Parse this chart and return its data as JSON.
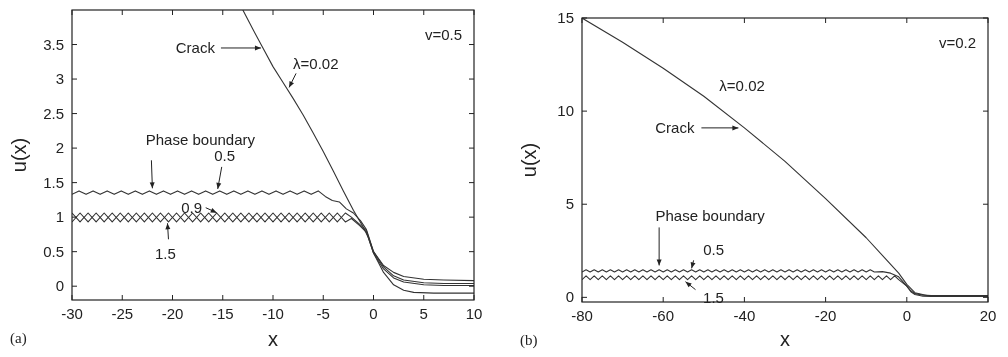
{
  "chart_data": [
    {
      "type": "line",
      "xlabel": "x",
      "ylabel": "u(x)",
      "xlim": [
        -30,
        10
      ],
      "ylim": [
        -0.2,
        4
      ],
      "xticks": [
        -30,
        -25,
        -20,
        -15,
        -10,
        -5,
        0,
        5,
        10
      ],
      "yticks": [
        0,
        0.5,
        1,
        1.5,
        2,
        2.5,
        3,
        3.5
      ],
      "series": [
        {
          "color": "#333333",
          "x": [
            -13,
            -12,
            -11,
            -10,
            -9,
            -8,
            -7,
            -6,
            -5,
            -4,
            -3,
            -2,
            -1,
            -0.5,
            0,
            1,
            2,
            3,
            4,
            6,
            10
          ],
          "values": [
            4.0,
            3.72,
            3.45,
            3.18,
            2.95,
            2.72,
            2.48,
            2.22,
            1.95,
            1.67,
            1.38,
            1.1,
            0.85,
            0.7,
            0.48,
            0.2,
            0.02,
            -0.06,
            -0.09,
            -0.1,
            -0.1
          ]
        },
        {
          "color": "#333333",
          "x": [
            -30,
            -29.3,
            -28.6,
            -27.9,
            -27.2,
            -26.5,
            -25.8,
            -25.1,
            -24.4,
            -23.7,
            -23,
            -22.3,
            -21.6,
            -20.9,
            -20.2,
            -19.5,
            -18.8,
            -18.1,
            -17.4,
            -16.7,
            -16,
            -15.3,
            -14.6,
            -13.9,
            -13.2,
            -12.5,
            -11.8,
            -11.1,
            -10.4,
            -9.7,
            -9,
            -8.3,
            -7.6,
            -6.9,
            -6.2,
            -5.5,
            -4.8,
            -4.1,
            -3.4,
            -2.7,
            -2,
            -1.3,
            -0.7,
            0,
            1,
            2,
            3,
            5,
            7,
            10
          ],
          "values": [
            1.33,
            1.38,
            1.33,
            1.38,
            1.33,
            1.38,
            1.33,
            1.38,
            1.33,
            1.38,
            1.33,
            1.38,
            1.33,
            1.38,
            1.33,
            1.38,
            1.33,
            1.38,
            1.33,
            1.38,
            1.33,
            1.38,
            1.33,
            1.38,
            1.33,
            1.38,
            1.33,
            1.38,
            1.33,
            1.38,
            1.33,
            1.38,
            1.33,
            1.38,
            1.33,
            1.38,
            1.3,
            1.24,
            1.22,
            1.12,
            1.06,
            0.95,
            0.82,
            0.5,
            0.3,
            0.2,
            0.14,
            0.1,
            0.09,
            0.08
          ]
        },
        {
          "color": "#333333",
          "x": [
            -30,
            -29.2,
            -28.4,
            -27.6,
            -26.8,
            -26,
            -25.2,
            -24.4,
            -23.6,
            -22.8,
            -22,
            -21.2,
            -20.4,
            -19.6,
            -18.8,
            -18,
            -17.2,
            -16.4,
            -15.6,
            -14.8,
            -14,
            -13.2,
            -12.4,
            -11.6,
            -10.8,
            -10,
            -9.2,
            -8.4,
            -7.6,
            -6.8,
            -6,
            -5.2,
            -4.4,
            -3.6,
            -2.8,
            -2.2,
            -1.4,
            -0.7,
            0,
            1,
            2,
            3,
            5,
            7,
            10
          ],
          "values": [
            1.06,
            0.93,
            1.06,
            0.93,
            1.06,
            0.93,
            1.06,
            0.93,
            1.06,
            0.93,
            1.06,
            0.93,
            1.06,
            0.93,
            1.06,
            0.93,
            1.06,
            0.93,
            1.06,
            0.93,
            1.06,
            0.93,
            1.06,
            0.93,
            1.06,
            0.93,
            1.06,
            0.93,
            1.06,
            0.93,
            1.06,
            0.93,
            1.06,
            0.93,
            1.06,
            1.0,
            0.9,
            0.8,
            0.5,
            0.28,
            0.15,
            0.09,
            0.05,
            0.04,
            0.04
          ]
        },
        {
          "color": "#333333",
          "x": [
            -30,
            -29.2,
            -28.4,
            -27.6,
            -26.8,
            -26,
            -25.2,
            -24.4,
            -23.6,
            -22.8,
            -22,
            -21.2,
            -20.4,
            -19.6,
            -18.8,
            -18,
            -17.2,
            -16.4,
            -15.6,
            -14.8,
            -14,
            -13.2,
            -12.4,
            -11.6,
            -10.8,
            -10,
            -9.2,
            -8.4,
            -7.6,
            -6.8,
            -6,
            -5.2,
            -4.4,
            -3.6,
            -2.8,
            -2.2,
            -1.4,
            -0.7,
            0,
            1,
            2,
            3,
            5,
            7,
            10
          ],
          "values": [
            0.93,
            1.06,
            0.93,
            1.06,
            0.93,
            1.06,
            0.93,
            1.06,
            0.93,
            1.06,
            0.93,
            1.06,
            0.93,
            1.06,
            0.93,
            1.06,
            0.93,
            1.06,
            0.93,
            1.06,
            0.93,
            1.06,
            0.93,
            1.06,
            0.93,
            1.06,
            0.93,
            1.06,
            0.93,
            1.06,
            0.93,
            1.06,
            0.93,
            1.06,
            0.93,
            0.98,
            0.88,
            0.78,
            0.48,
            0.25,
            0.12,
            0.06,
            0.02,
            0.01,
            0.01
          ]
        }
      ],
      "annotations": [
        {
          "text": "Crack",
          "x": -11,
          "y": 3.45
        },
        {
          "text": "λ=0.02",
          "x": -8.5,
          "y": 2.85
        },
        {
          "text": "Phase boundary",
          "x": -22,
          "y": 1.36
        },
        {
          "text": "0.5",
          "x": -15.5,
          "y": 1.38
        },
        {
          "text": "0.9",
          "x": -15.5,
          "y": 1.05
        },
        {
          "text": "1.5",
          "x": -20.5,
          "y": 0.94
        },
        "v=0.5",
        "(a)"
      ]
    },
    {
      "type": "line",
      "xlabel": "x",
      "ylabel": "u(x)",
      "xlim": [
        -80,
        20
      ],
      "ylim": [
        -0.25,
        15
      ],
      "xticks": [
        -80,
        -60,
        -40,
        -20,
        0,
        20
      ],
      "yticks": [
        0,
        5,
        10,
        15
      ],
      "series": [
        {
          "color": "#333333",
          "x": [
            -80,
            -70,
            -60,
            -50,
            -40,
            -30,
            -20,
            -10,
            -2,
            0,
            2,
            5,
            20
          ],
          "values": [
            15,
            13.7,
            12.3,
            10.8,
            9.1,
            7.3,
            5.3,
            3.2,
            1.3,
            0.7,
            0.25,
            0.1,
            0.1
          ]
        },
        {
          "color": "#333333",
          "x": [
            -80,
            -79,
            -78,
            -77,
            -76,
            -75,
            -74,
            -73,
            -72,
            -71,
            -70,
            -69,
            -68,
            -67,
            -66,
            -65,
            -64,
            -63,
            -62,
            -61,
            -60,
            -59,
            -58,
            -57,
            -56,
            -55,
            -54,
            -53,
            -52,
            -51,
            -50,
            -49,
            -48,
            -47,
            -46,
            -45,
            -44,
            -43,
            -42,
            -41,
            -40,
            -39,
            -38,
            -37,
            -36,
            -35,
            -34,
            -33,
            -32,
            -31,
            -30,
            -29,
            -28,
            -27,
            -26,
            -25,
            -24,
            -23,
            -22,
            -21,
            -20,
            -19,
            -18,
            -17,
            -16,
            -15,
            -14,
            -13,
            -12,
            -11,
            -10,
            -9,
            -8,
            -6,
            -4,
            -2,
            0,
            1,
            2,
            4,
            6,
            10,
            20
          ],
          "values": [
            1.36,
            1.48,
            1.36,
            1.48,
            1.36,
            1.48,
            1.36,
            1.48,
            1.36,
            1.48,
            1.36,
            1.48,
            1.36,
            1.48,
            1.36,
            1.48,
            1.36,
            1.48,
            1.36,
            1.48,
            1.36,
            1.48,
            1.36,
            1.48,
            1.36,
            1.48,
            1.36,
            1.48,
            1.36,
            1.48,
            1.36,
            1.48,
            1.36,
            1.48,
            1.36,
            1.48,
            1.36,
            1.48,
            1.36,
            1.48,
            1.36,
            1.48,
            1.36,
            1.48,
            1.36,
            1.48,
            1.36,
            1.48,
            1.36,
            1.48,
            1.36,
            1.48,
            1.36,
            1.48,
            1.36,
            1.48,
            1.36,
            1.48,
            1.36,
            1.48,
            1.36,
            1.48,
            1.36,
            1.48,
            1.36,
            1.48,
            1.36,
            1.48,
            1.36,
            1.48,
            1.36,
            1.48,
            1.36,
            1.38,
            1.3,
            1.1,
            0.6,
            0.35,
            0.2,
            0.12,
            0.1,
            0.1,
            0.1
          ]
        },
        {
          "color": "#333333",
          "x": [
            -80,
            -79,
            -78,
            -77,
            -76,
            -75,
            -74,
            -73,
            -72,
            -71,
            -70,
            -69,
            -68,
            -67,
            -66,
            -65,
            -64,
            -63,
            -62,
            -61,
            -60,
            -59,
            -58,
            -57,
            -56,
            -55,
            -54,
            -53,
            -52,
            -51,
            -50,
            -49,
            -48,
            -47,
            -46,
            -45,
            -44,
            -43,
            -42,
            -41,
            -40,
            -39,
            -38,
            -37,
            -36,
            -35,
            -34,
            -33,
            -32,
            -31,
            -30,
            -29,
            -28,
            -27,
            -26,
            -25,
            -24,
            -23,
            -22,
            -21,
            -20,
            -19,
            -18,
            -17,
            -16,
            -15,
            -14,
            -13,
            -12,
            -11,
            -10,
            -9,
            -8,
            -7,
            -6,
            -5,
            -4,
            -3,
            -2,
            0,
            1,
            2,
            4,
            6,
            20
          ],
          "values": [
            0.95,
            1.15,
            0.95,
            1.15,
            0.95,
            1.15,
            0.95,
            1.15,
            0.95,
            1.15,
            0.95,
            1.15,
            0.95,
            1.15,
            0.95,
            1.15,
            0.95,
            1.15,
            0.95,
            1.15,
            0.95,
            1.15,
            0.95,
            1.15,
            0.95,
            1.15,
            0.95,
            1.15,
            0.95,
            1.15,
            0.95,
            1.15,
            0.95,
            1.15,
            0.95,
            1.15,
            0.95,
            1.15,
            0.95,
            1.15,
            0.95,
            1.15,
            0.95,
            1.15,
            0.95,
            1.15,
            0.95,
            1.15,
            0.95,
            1.15,
            0.95,
            1.15,
            0.95,
            1.15,
            0.95,
            1.15,
            0.95,
            1.15,
            0.95,
            1.15,
            0.95,
            1.15,
            0.95,
            1.15,
            0.95,
            1.15,
            0.95,
            1.15,
            0.95,
            1.15,
            0.95,
            1.15,
            0.95,
            1.15,
            0.95,
            1.15,
            0.95,
            1.15,
            0.95,
            0.6,
            0.3,
            0.15,
            0.06,
            0.05,
            0.05
          ]
        }
      ],
      "annotations": [
        {
          "text": "λ=0.02",
          "x": -45,
          "y": 10
        },
        {
          "text": "Crack",
          "x": -40,
          "y": 9.1
        },
        {
          "text": "Phase boundary",
          "x": -61,
          "y": 1.5
        },
        {
          "text": "0.5",
          "x": -53,
          "y": 1.45
        },
        {
          "text": "1.5",
          "x": -55,
          "y": 0.95
        },
        "v=0.2",
        "(b)"
      ]
    }
  ]
}
